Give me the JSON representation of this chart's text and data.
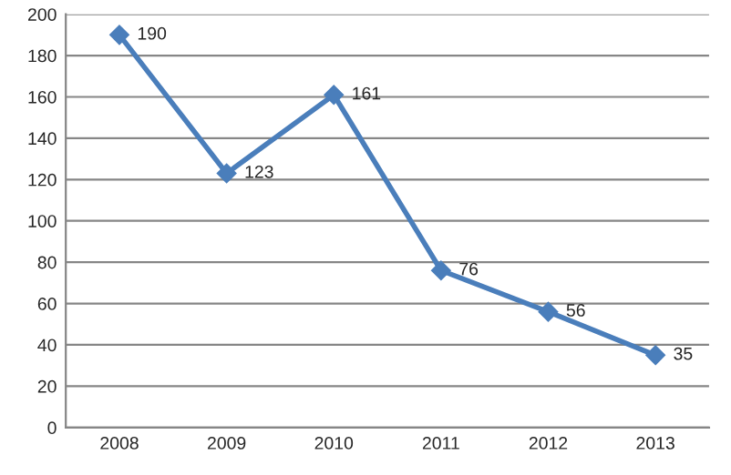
{
  "chart_data": {
    "type": "line",
    "categories": [
      "2008",
      "2009",
      "2010",
      "2011",
      "2012",
      "2013"
    ],
    "series": [
      {
        "color": "#4a7ebb",
        "values": [
          190,
          123,
          161,
          76,
          56,
          35
        ]
      }
    ],
    "ylim": [
      0,
      200
    ],
    "yticks": [
      0,
      20,
      40,
      60,
      80,
      100,
      120,
      140,
      160,
      180,
      200
    ],
    "grid": "y",
    "marker": "diamond",
    "line_style": "solid",
    "data_labels": true,
    "legend": false
  }
}
